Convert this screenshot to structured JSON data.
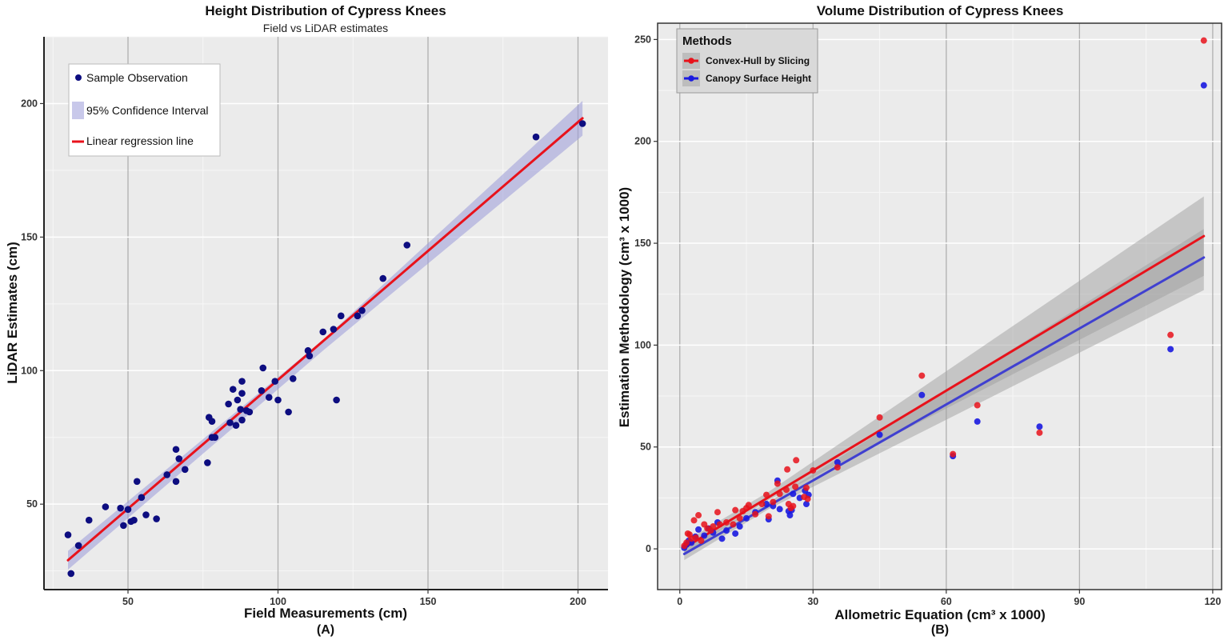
{
  "panels": [
    {
      "title": "Height Distribution of Cypress Knees",
      "subtitle": "Field vs LiDAR estimates",
      "xlabel": "Field Measurements (cm)",
      "ylabel": "LiDAR Estimates (cm)",
      "tag": "(A)"
    },
    {
      "title": "Volume Distribution of Cypress Knees",
      "subtitle": "",
      "xlabel": "Allometric Equation (cm³ x 1000)",
      "ylabel": "Estimation Methodology (cm³ x 1000)",
      "tag": "(B)"
    }
  ],
  "chart_data": [
    {
      "type": "scatter",
      "title": "Height Distribution of Cypress Knees",
      "subtitle": "Field vs LiDAR estimates",
      "xlabel": "Field Measurements (cm)",
      "ylabel": "LiDAR Estimates (cm)",
      "xlim": [
        22,
        210
      ],
      "ylim": [
        18,
        225
      ],
      "x_ticks": [
        50,
        100,
        150,
        200
      ],
      "y_ticks": [
        50,
        100,
        150,
        200
      ],
      "grid": true,
      "legend_position": "top-left",
      "legend": {
        "points": "Sample Observation",
        "band": "95% Confidence Interval",
        "line": "Linear regression line"
      },
      "colors": {
        "points": "#0d0d80",
        "line": "#e8121b",
        "band": "#9a9ad8"
      },
      "points": [
        [
          30,
          38.5
        ],
        [
          31,
          24
        ],
        [
          33.5,
          34.5
        ],
        [
          37,
          44
        ],
        [
          42.5,
          49
        ],
        [
          47.5,
          48.5
        ],
        [
          48.5,
          42
        ],
        [
          50,
          48
        ],
        [
          51,
          43.5
        ],
        [
          52,
          44
        ],
        [
          53,
          58.5
        ],
        [
          54.5,
          52.5
        ],
        [
          56,
          46
        ],
        [
          59.5,
          44.5
        ],
        [
          63,
          61
        ],
        [
          66,
          58.5
        ],
        [
          66,
          70.5
        ],
        [
          67,
          67
        ],
        [
          69,
          63
        ],
        [
          76.5,
          65.5
        ],
        [
          77,
          82.5
        ],
        [
          78,
          81
        ],
        [
          78,
          75
        ],
        [
          79,
          75
        ],
        [
          83.5,
          87.5
        ],
        [
          84,
          80.5
        ],
        [
          85,
          93
        ],
        [
          86,
          79.5
        ],
        [
          86.5,
          89
        ],
        [
          87.5,
          85.5
        ],
        [
          88,
          96
        ],
        [
          88,
          91.5
        ],
        [
          88,
          81.5
        ],
        [
          89.5,
          85
        ],
        [
          90.5,
          84.5
        ],
        [
          94.5,
          92.5
        ],
        [
          95,
          101
        ],
        [
          97,
          90
        ],
        [
          99,
          96
        ],
        [
          100,
          89
        ],
        [
          103.5,
          84.5
        ],
        [
          105,
          97
        ],
        [
          110,
          107.5
        ],
        [
          110.5,
          105.5
        ],
        [
          115,
          114.5
        ],
        [
          118.5,
          115.5
        ],
        [
          119.5,
          89
        ],
        [
          121,
          120.5
        ],
        [
          126.5,
          120.5
        ],
        [
          128,
          122.5
        ],
        [
          135,
          134.5
        ],
        [
          143,
          147
        ],
        [
          186,
          187.5
        ],
        [
          201.5,
          192.5
        ]
      ],
      "regression": {
        "x": [
          30,
          201.5
        ],
        "y": [
          29,
          194.5
        ]
      },
      "confidence_band": {
        "x": [
          30,
          115,
          201.5
        ],
        "upper": [
          32.5,
          111.5,
          201
        ],
        "lower": [
          25.5,
          107.5,
          188
        ]
      }
    },
    {
      "type": "scatter",
      "title": "Volume Distribution of Cypress Knees",
      "xlabel": "Allometric Equation (cm³ x 1000)",
      "ylabel": "Estimation Methodology (cm³ x 1000)",
      "xlim": [
        -5,
        122
      ],
      "ylim": [
        -20,
        258
      ],
      "x_ticks": [
        0,
        30,
        60,
        90,
        120
      ],
      "y_ticks": [
        0,
        50,
        100,
        150,
        200,
        250
      ],
      "grid": true,
      "legend_position": "top-left",
      "legend_title": "Methods",
      "series": [
        {
          "name": "Convex-Hull by Slicing",
          "color": "#e8121b",
          "regression": {
            "x": [
              1,
              118
            ],
            "y": [
              0.5,
              153.5
            ]
          },
          "confidence_band": {
            "x": [
              1,
              20,
              118
            ],
            "upper": [
              3.5,
              28,
              173
            ],
            "lower": [
              -2.5,
              24,
              134
            ]
          },
          "points": [
            [
              1,
              1.5
            ],
            [
              1.5,
              3
            ],
            [
              1.8,
              7.5
            ],
            [
              2.2,
              7
            ],
            [
              2.6,
              5
            ],
            [
              3.2,
              14
            ],
            [
              3.6,
              5.5
            ],
            [
              4.2,
              16.5
            ],
            [
              4.8,
              4
            ],
            [
              5.5,
              12
            ],
            [
              6.2,
              10
            ],
            [
              7,
              9
            ],
            [
              7.5,
              11
            ],
            [
              8.5,
              18
            ],
            [
              9,
              12
            ],
            [
              10.5,
              13
            ],
            [
              12,
              12
            ],
            [
              12.5,
              19
            ],
            [
              13.5,
              15
            ],
            [
              14.2,
              18.5
            ],
            [
              15,
              20
            ],
            [
              15.5,
              21.5
            ],
            [
              17,
              17
            ],
            [
              18.5,
              22
            ],
            [
              19.5,
              26.5
            ],
            [
              20,
              16
            ],
            [
              21,
              23
            ],
            [
              22,
              32
            ],
            [
              22.5,
              27
            ],
            [
              24,
              29
            ],
            [
              24.2,
              39
            ],
            [
              24.5,
              22
            ],
            [
              25,
              20
            ],
            [
              25.5,
              21
            ],
            [
              26,
              30.5
            ],
            [
              26.2,
              43.5
            ],
            [
              28,
              25.5
            ],
            [
              28.5,
              30
            ],
            [
              28.8,
              24.5
            ],
            [
              30,
              38.5
            ],
            [
              35.5,
              40
            ],
            [
              45,
              64.5
            ],
            [
              54.5,
              85
            ],
            [
              61.5,
              46.5
            ],
            [
              67,
              70.5
            ],
            [
              81,
              57
            ],
            [
              110.5,
              105
            ],
            [
              118,
              249.5
            ]
          ]
        },
        {
          "name": "Canopy Surface Height",
          "color": "#1a1ae0",
          "regression": {
            "x": [
              1,
              118
            ],
            "y": [
              -2.5,
              143
            ]
          },
          "confidence_band": {
            "x": [
              1,
              20,
              118
            ],
            "upper": [
              0.5,
              23,
              157
            ],
            "lower": [
              -5.5,
              19.5,
              127
            ]
          },
          "points": [
            [
              1,
              0.5
            ],
            [
              1.5,
              2
            ],
            [
              2,
              4
            ],
            [
              2.6,
              3
            ],
            [
              3.5,
              6
            ],
            [
              4.2,
              9.5
            ],
            [
              5.5,
              6.5
            ],
            [
              6.5,
              10
            ],
            [
              7.5,
              8
            ],
            [
              8.5,
              13
            ],
            [
              9.5,
              5
            ],
            [
              10.5,
              9
            ],
            [
              12.5,
              7.5
            ],
            [
              13.5,
              11
            ],
            [
              15,
              15
            ],
            [
              17,
              18
            ],
            [
              19.5,
              22
            ],
            [
              20,
              14.5
            ],
            [
              21,
              21
            ],
            [
              22,
              33.5
            ],
            [
              22.5,
              19.5
            ],
            [
              24.5,
              18.5
            ],
            [
              24.8,
              16.5
            ],
            [
              25.2,
              19
            ],
            [
              25.5,
              27
            ],
            [
              27,
              25
            ],
            [
              28.2,
              28.5
            ],
            [
              28.5,
              22
            ],
            [
              29,
              26.5
            ],
            [
              35.5,
              42.5
            ],
            [
              45,
              56
            ],
            [
              54.5,
              75.5
            ],
            [
              61.5,
              45.5
            ],
            [
              67,
              62.5
            ],
            [
              81,
              60
            ],
            [
              110.5,
              98
            ],
            [
              118,
              227.5
            ]
          ]
        }
      ]
    }
  ]
}
